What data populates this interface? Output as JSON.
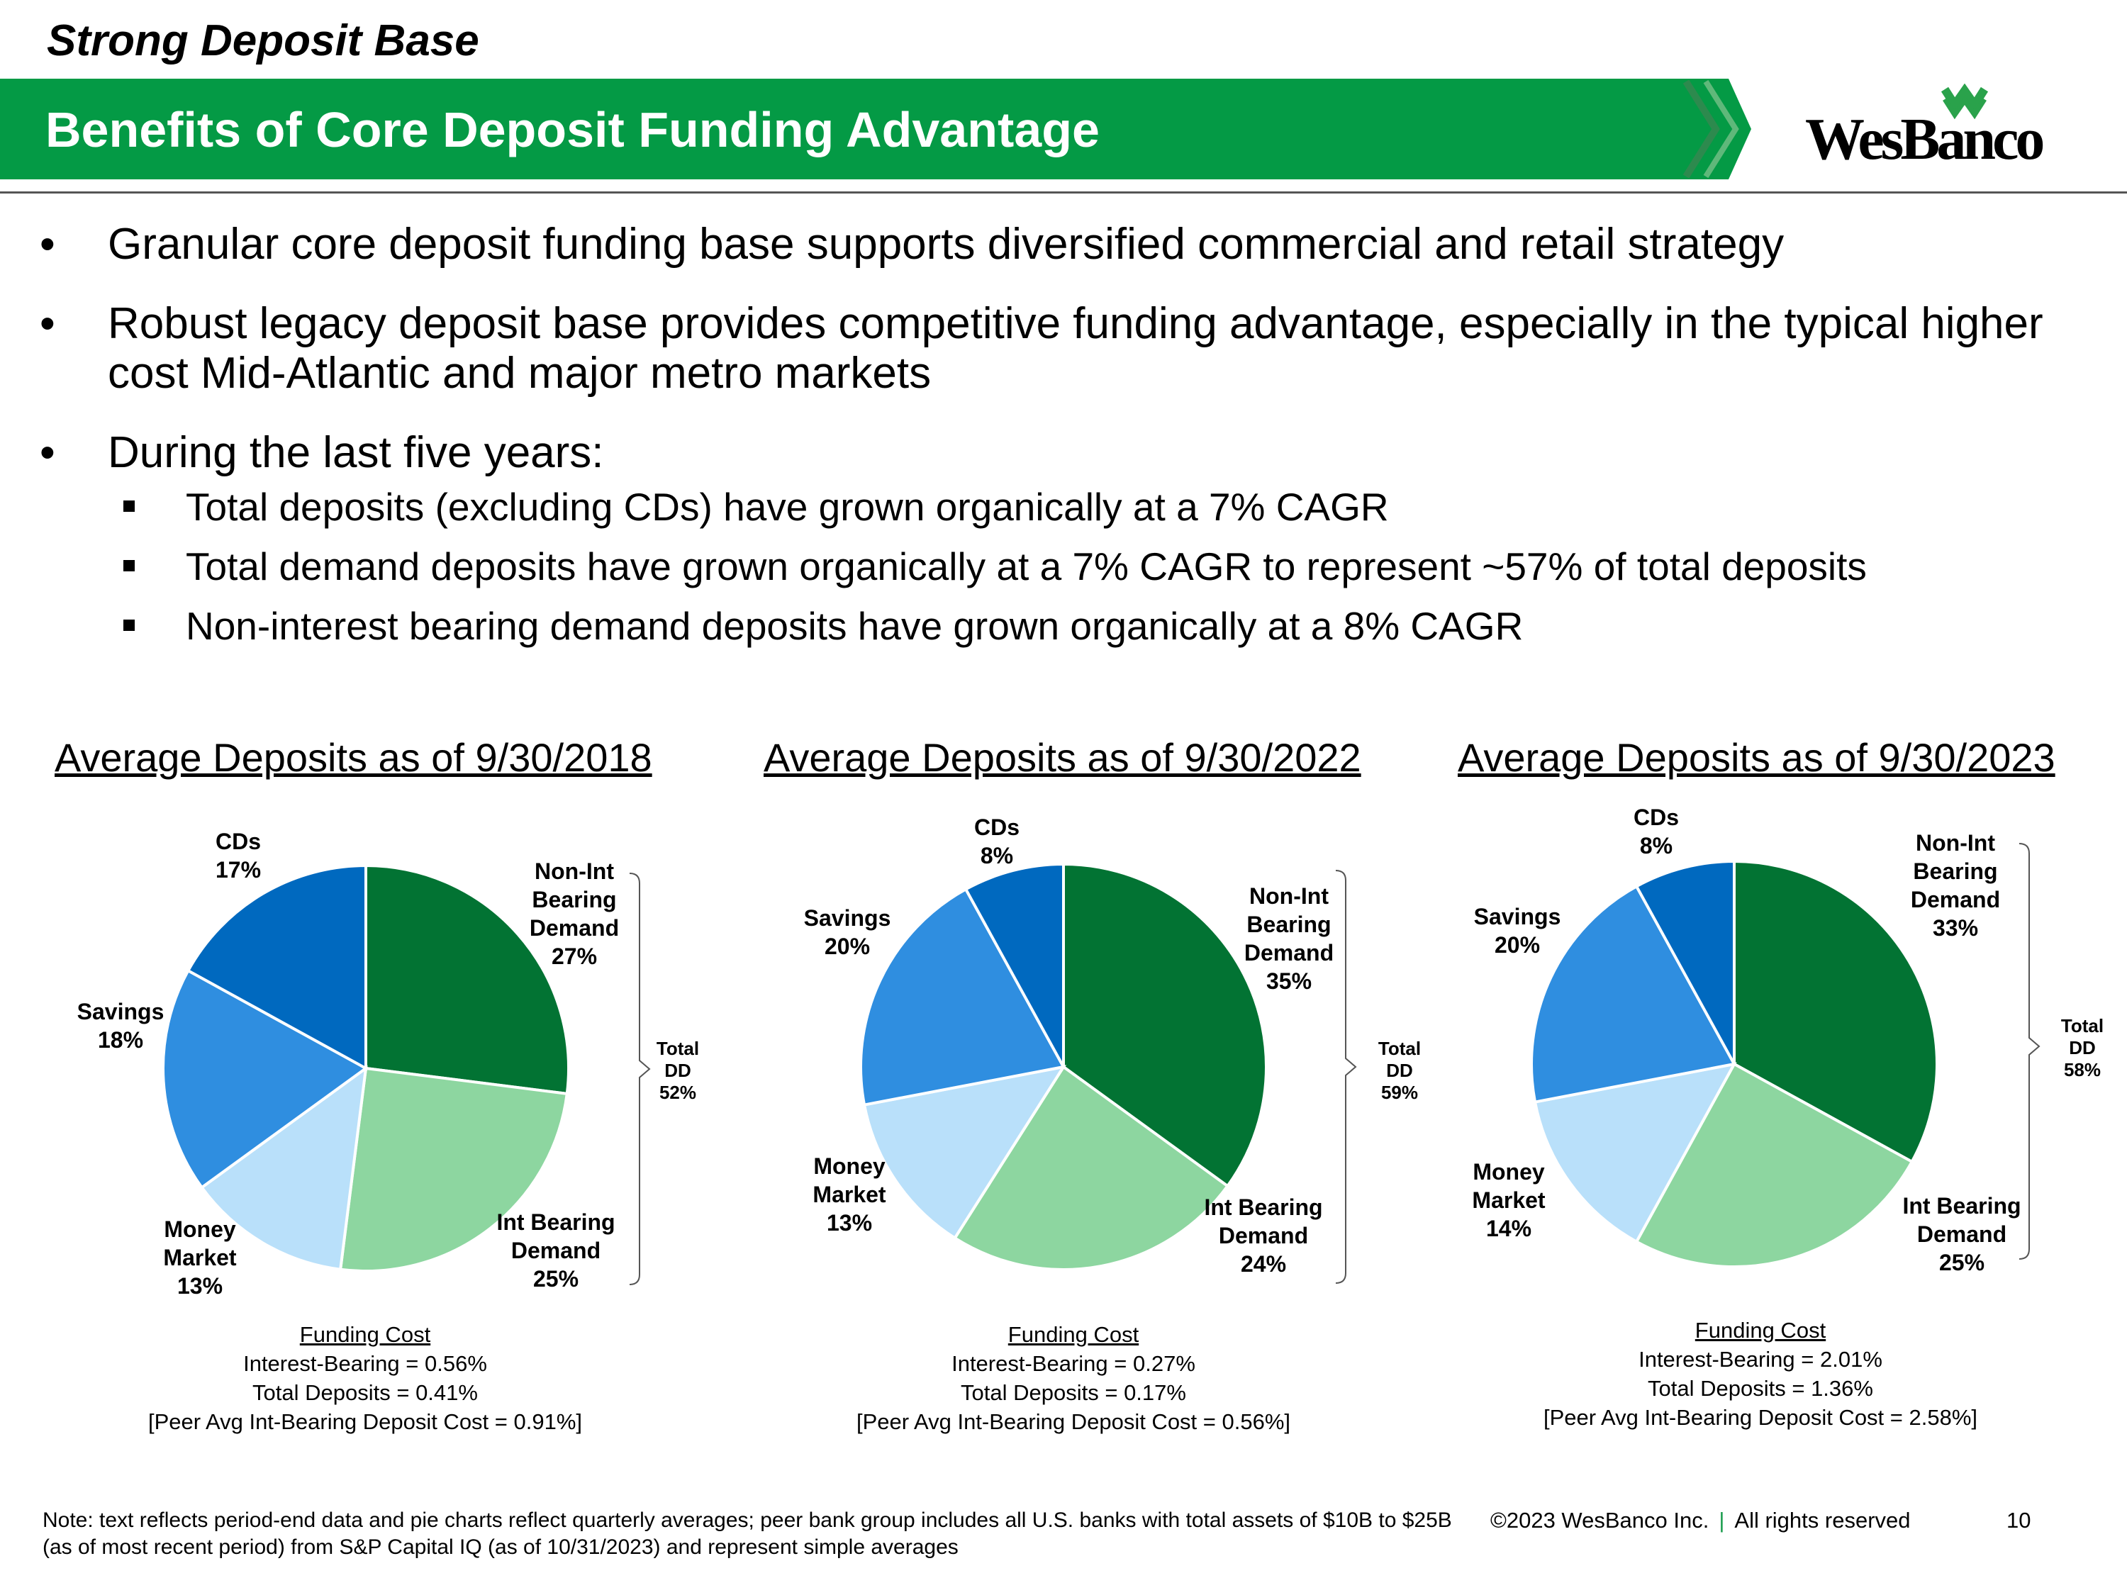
{
  "section_title": "Strong Deposit Base",
  "banner_title": "Benefits of Core Deposit Funding Advantage",
  "logo_text": "WesBanco",
  "colors": {
    "banner_green": "#049a45",
    "non_int": "#027333",
    "int_bearing": "#8dd6a0",
    "money_market": "#b9e0fa",
    "savings": "#2f8ee0",
    "cds": "#0069bf",
    "separator": "#1a9c4d"
  },
  "bullets": [
    {
      "text": "Granular core deposit funding base supports diversified commercial and retail strategy"
    },
    {
      "text": "Robust legacy deposit base provides competitive funding advantage, especially in the typical higher cost Mid-Atlantic and major metro markets"
    },
    {
      "text": "During the last five years:",
      "sub": [
        "Total deposits (excluding CDs) have grown organically at a 7% CAGR",
        "Total demand deposits have grown organically at a 7% CAGR to represent ~57% of total deposits",
        "Non-interest bearing demand deposits have grown organically at a 8% CAGR"
      ]
    }
  ],
  "chart_data": [
    {
      "type": "pie",
      "title": "Average Deposits as of 9/30/2018",
      "categories": [
        "Non-Int Bearing Demand",
        "Int Bearing Demand",
        "Money Market",
        "Savings",
        "CDs"
      ],
      "values": [
        27,
        25,
        13,
        18,
        17
      ],
      "total_dd": 52,
      "total_label": [
        "Total",
        "DD",
        "52%"
      ],
      "funding_cost": {
        "heading": "Funding Cost",
        "lines": [
          "Interest-Bearing = 0.56%",
          "Total Deposits = 0.41%",
          "[Peer Avg Int-Bearing Deposit Cost = 0.91%]"
        ]
      },
      "labels": [
        [
          "Non-Int",
          "Bearing",
          "Demand",
          "27%"
        ],
        [
          "Int Bearing",
          "Demand",
          "25%"
        ],
        [
          "Money",
          "Market",
          "13%"
        ],
        [
          "Savings",
          "18%"
        ],
        [
          "CDs",
          "17%"
        ]
      ]
    },
    {
      "type": "pie",
      "title": "Average Deposits as of 9/30/2022",
      "categories": [
        "Non-Int Bearing Demand",
        "Int Bearing Demand",
        "Money Market",
        "Savings",
        "CDs"
      ],
      "values": [
        35,
        24,
        13,
        20,
        8
      ],
      "total_dd": 59,
      "total_label": [
        "Total",
        "DD",
        "59%"
      ],
      "funding_cost": {
        "heading": "Funding Cost",
        "lines": [
          "Interest-Bearing = 0.27%",
          "Total Deposits = 0.17%",
          "[Peer Avg Int-Bearing Deposit Cost = 0.56%]"
        ]
      },
      "labels": [
        [
          "Non-Int",
          "Bearing",
          "Demand",
          "35%"
        ],
        [
          "Int Bearing",
          "Demand",
          "24%"
        ],
        [
          "Money",
          "Market",
          "13%"
        ],
        [
          "Savings",
          "20%"
        ],
        [
          "CDs",
          "8%"
        ]
      ]
    },
    {
      "type": "pie",
      "title": "Average Deposits as of 9/30/2023",
      "categories": [
        "Non-Int Bearing Demand",
        "Int Bearing Demand",
        "Money Market",
        "Savings",
        "CDs"
      ],
      "values": [
        33,
        25,
        14,
        20,
        8
      ],
      "total_dd": 58,
      "total_label": [
        "Total",
        "DD",
        "58%"
      ],
      "funding_cost": {
        "heading": "Funding Cost",
        "lines": [
          "Interest-Bearing = 2.01%",
          "Total Deposits = 1.36%",
          "[Peer Avg Int-Bearing Deposit Cost = 2.58%]"
        ]
      },
      "labels": [
        [
          "Non-Int",
          "Bearing",
          "Demand",
          "33%"
        ],
        [
          "Int Bearing",
          "Demand",
          "25%"
        ],
        [
          "Money",
          "Market",
          "14%"
        ],
        [
          "Savings",
          "20%"
        ],
        [
          "CDs",
          "8%"
        ]
      ]
    }
  ],
  "footer": {
    "note": "Note: text reflects period-end data and pie charts reflect quarterly averages; peer bank group includes all U.S. banks with total assets of $10B to $25B (as of most recent period) from S&P Capital IQ (as of 10/31/2023) and represent simple averages",
    "copyright": "©2023 WesBanco Inc.",
    "separator": "|",
    "rights": "All rights reserved",
    "page": "10"
  }
}
